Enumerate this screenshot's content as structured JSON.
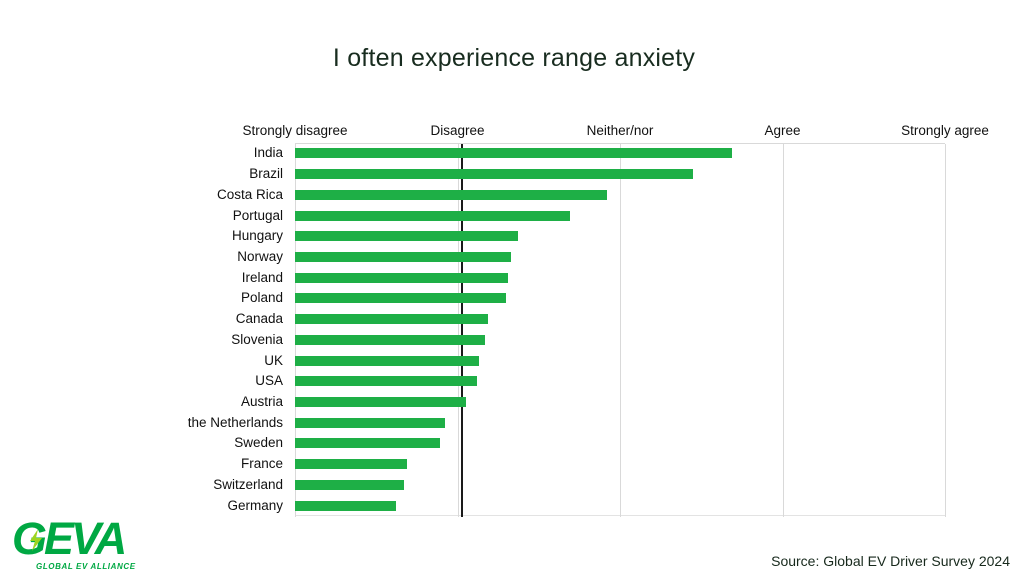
{
  "page": {
    "title": "I often experience range anxiety"
  },
  "footer": {
    "logo_text": "GEVA",
    "logo_subtext": "GLOBAL EV ALLIANCE",
    "source": "Source: Global EV Driver Survey 2024"
  },
  "colors": {
    "bar_green": "#1eaf46",
    "logo_green": "#00a843",
    "bolt_yellow_green": "#9ed41f",
    "gridline": "#d9d9d9",
    "reference_line": "#1a1a1a",
    "title_text": "#182c1f",
    "label_text": "#111111"
  },
  "chart_data": {
    "type": "bar",
    "orientation": "horizontal",
    "title": "I often experience range anxiety",
    "x_axis": {
      "labels": [
        "Strongly disagree",
        "Disagree",
        "Neither/nor",
        "Agree",
        "Strongly agree"
      ],
      "min": 1,
      "max": 5,
      "grid": true
    },
    "reference_line_value": 2.03,
    "categories": [
      "India",
      "Brazil",
      "Costa Rica",
      "Portugal",
      "Hungary",
      "Norway",
      "Ireland",
      "Poland",
      "Canada",
      "Slovenia",
      "UK",
      "USA",
      "Austria",
      "the Netherlands",
      "Sweden",
      "France",
      "Switzerland",
      "Germany"
    ],
    "values": [
      3.69,
      3.45,
      2.92,
      2.69,
      2.37,
      2.33,
      2.31,
      2.3,
      2.19,
      2.17,
      2.13,
      2.12,
      2.05,
      1.92,
      1.89,
      1.69,
      1.67,
      1.62
    ],
    "legend": null,
    "source": "Source: Global EV Driver Survey 2024"
  }
}
